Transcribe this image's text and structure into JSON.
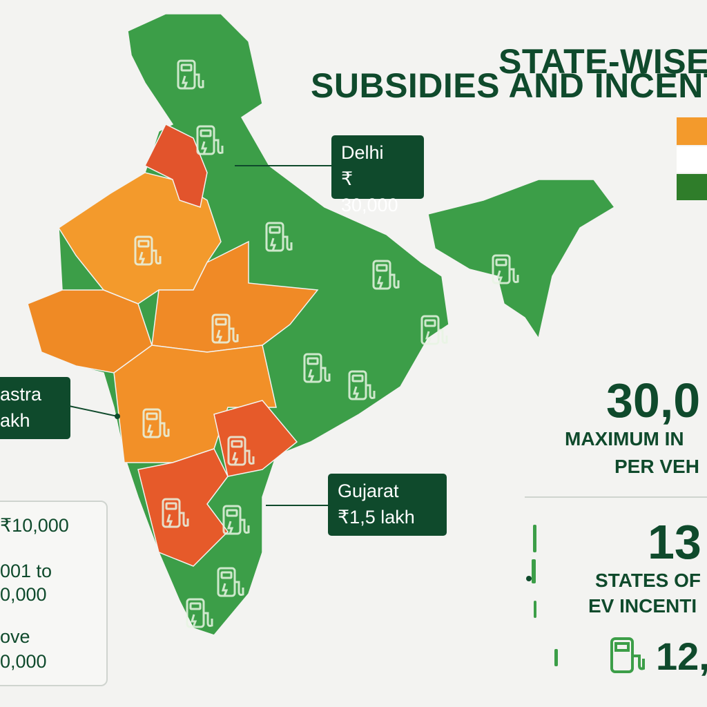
{
  "title": {
    "line1": "STATE-WISE",
    "line2": "SUBSIDIES AND INCENTIVES"
  },
  "callouts": [
    {
      "state": "Delhi",
      "amount": "₹ 30,000"
    },
    {
      "state": "astra",
      "amount": "akh"
    },
    {
      "state": "Gujarat",
      "amount": "₹1,5 lakh"
    }
  ],
  "legend": [
    {
      "lines": [
        "₹10,000"
      ]
    },
    {
      "lines": [
        "001 to",
        "0,000"
      ]
    },
    {
      "lines": [
        "ove",
        "0,000"
      ]
    }
  ],
  "stats": [
    {
      "figure": "30,0",
      "lines": [
        "MAXIMUM IN",
        "PER VEH"
      ]
    },
    {
      "figure": "13",
      "lines": [
        "STATES OF",
        "EV INCENTI"
      ]
    },
    {
      "figure": "12,"
    }
  ]
}
